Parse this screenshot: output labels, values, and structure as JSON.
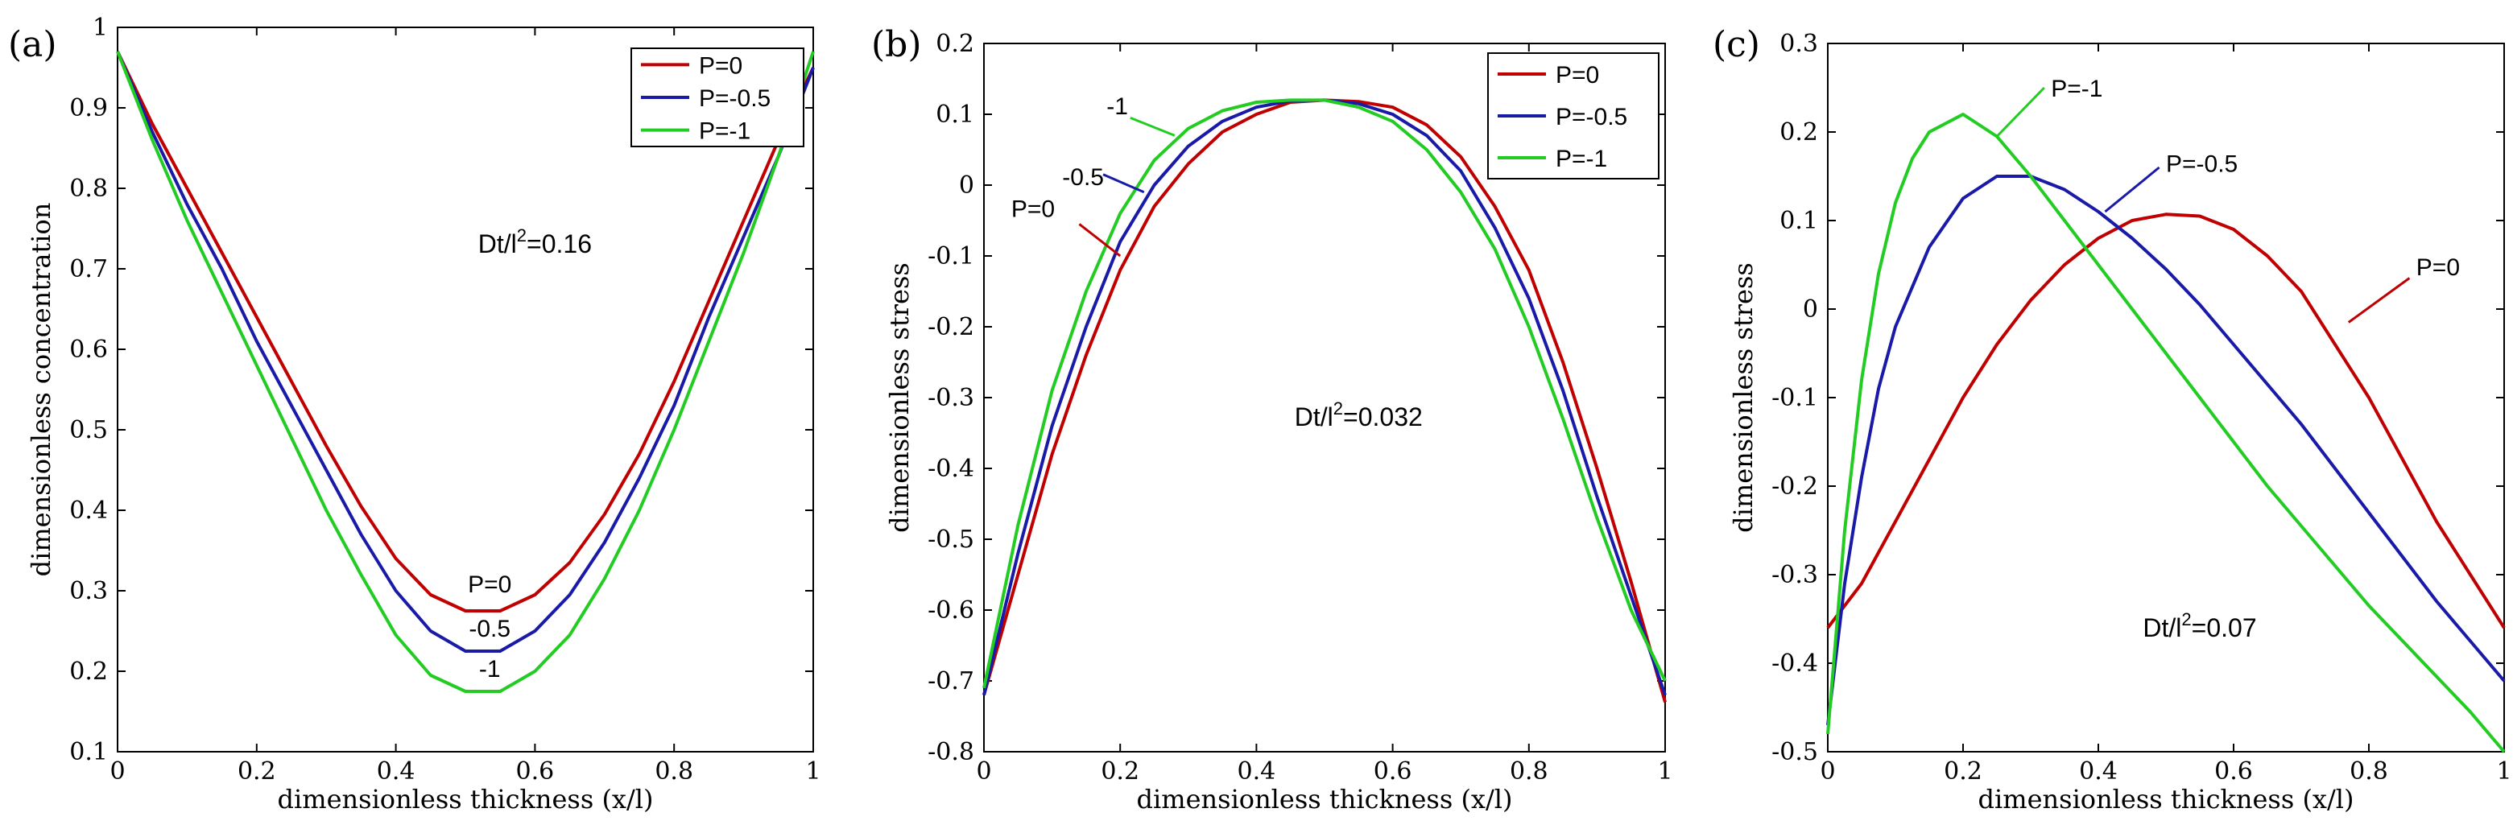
{
  "chart_data": [
    {
      "panel": "(a)",
      "type": "line",
      "xlabel": "dimensionless thickness (x/l)",
      "ylabel": "dimensionless concentration",
      "xlim": [
        0,
        1
      ],
      "ylim": [
        0.1,
        1
      ],
      "xticks": [
        0,
        0.2,
        0.4,
        0.6,
        0.8,
        1
      ],
      "xtick_labels": [
        "0",
        "0.2",
        "0.4",
        "0.6",
        "0.8",
        "1"
      ],
      "yticks": [
        0.1,
        0.2,
        0.3,
        0.4,
        0.5,
        0.6,
        0.7,
        0.8,
        0.9,
        1
      ],
      "ytick_labels": [
        "0.1",
        "0.2",
        "0.3",
        "0.4",
        "0.5",
        "0.6",
        "0.7",
        "0.8",
        "0.9",
        "1"
      ],
      "grid": false,
      "legend_position": "top-right",
      "annotation": "Dt/l",
      "annotation_sup": "2",
      "annotation_tail": "=0.16",
      "series": [
        {
          "name": "P=0",
          "color": "#c00000",
          "x": [
            0,
            0.05,
            0.1,
            0.15,
            0.2,
            0.25,
            0.3,
            0.35,
            0.4,
            0.45,
            0.5,
            0.55,
            0.6,
            0.65,
            0.7,
            0.75,
            0.8,
            0.85,
            0.9,
            0.95,
            1
          ],
          "y": [
            0.97,
            0.88,
            0.8,
            0.72,
            0.64,
            0.56,
            0.48,
            0.405,
            0.34,
            0.295,
            0.275,
            0.275,
            0.295,
            0.335,
            0.395,
            0.47,
            0.56,
            0.66,
            0.76,
            0.86,
            0.95
          ]
        },
        {
          "name": "P=-0.5",
          "color": "#1a1aa8",
          "x": [
            0,
            0.05,
            0.1,
            0.15,
            0.2,
            0.25,
            0.3,
            0.35,
            0.4,
            0.45,
            0.5,
            0.55,
            0.6,
            0.65,
            0.7,
            0.75,
            0.8,
            0.85,
            0.9,
            0.95,
            1
          ],
          "y": [
            0.97,
            0.87,
            0.78,
            0.7,
            0.61,
            0.53,
            0.45,
            0.37,
            0.3,
            0.25,
            0.225,
            0.225,
            0.25,
            0.295,
            0.36,
            0.44,
            0.53,
            0.64,
            0.74,
            0.84,
            0.95
          ]
        },
        {
          "name": "P=-1",
          "color": "#22cc22",
          "x": [
            0,
            0.05,
            0.1,
            0.15,
            0.2,
            0.25,
            0.3,
            0.35,
            0.4,
            0.45,
            0.5,
            0.55,
            0.6,
            0.65,
            0.7,
            0.75,
            0.8,
            0.85,
            0.9,
            0.95,
            1
          ],
          "y": [
            0.97,
            0.86,
            0.76,
            0.67,
            0.58,
            0.49,
            0.4,
            0.32,
            0.245,
            0.195,
            0.175,
            0.175,
            0.2,
            0.245,
            0.315,
            0.4,
            0.5,
            0.61,
            0.72,
            0.84,
            0.97
          ]
        }
      ],
      "curve_labels": [
        {
          "text": "P=0",
          "x": 0.535,
          "y": 0.298
        },
        {
          "text": "-0.5",
          "x": 0.535,
          "y": 0.243
        },
        {
          "text": "-1",
          "x": 0.535,
          "y": 0.193
        }
      ]
    },
    {
      "panel": "(b)",
      "type": "line",
      "xlabel": "dimensionless thickness (x/l)",
      "ylabel": "dimensionless stress",
      "xlim": [
        0,
        1
      ],
      "ylim": [
        -0.8,
        0.2
      ],
      "xticks": [
        0,
        0.2,
        0.4,
        0.6,
        0.8,
        1
      ],
      "xtick_labels": [
        "0",
        "0.2",
        "0.4",
        "0.6",
        "0.8",
        "1"
      ],
      "yticks": [
        0.2,
        0.1,
        0,
        -0.1,
        -0.2,
        -0.3,
        -0.4,
        -0.5,
        -0.6,
        -0.7,
        -0.8
      ],
      "ytick_labels": [
        "0.2",
        "0.1",
        "0",
        "-0.1",
        "-0.2",
        "-0.3",
        "-0.4",
        "-0.5",
        "-0.6",
        "-0.7",
        "-0.8"
      ],
      "grid": false,
      "legend_position": "top-right",
      "annotation": "Dt/l",
      "annotation_sup": "2",
      "annotation_tail": "=0.032",
      "series": [
        {
          "name": "P=0",
          "color": "#c00000",
          "x": [
            0,
            0.05,
            0.1,
            0.15,
            0.2,
            0.25,
            0.3,
            0.35,
            0.4,
            0.45,
            0.5,
            0.55,
            0.6,
            0.65,
            0.7,
            0.75,
            0.8,
            0.85,
            0.9,
            0.95,
            1
          ],
          "y": [
            -0.72,
            -0.55,
            -0.38,
            -0.24,
            -0.12,
            -0.03,
            0.03,
            0.075,
            0.1,
            0.117,
            0.12,
            0.118,
            0.11,
            0.085,
            0.04,
            -0.03,
            -0.12,
            -0.25,
            -0.4,
            -0.56,
            -0.73
          ]
        },
        {
          "name": "P=-0.5",
          "color": "#1a1aa8",
          "x": [
            0,
            0.05,
            0.1,
            0.15,
            0.2,
            0.25,
            0.3,
            0.35,
            0.4,
            0.45,
            0.5,
            0.55,
            0.6,
            0.65,
            0.7,
            0.75,
            0.8,
            0.85,
            0.9,
            0.95,
            1
          ],
          "y": [
            -0.72,
            -0.52,
            -0.34,
            -0.2,
            -0.08,
            0.0,
            0.055,
            0.09,
            0.11,
            0.119,
            0.12,
            0.115,
            0.1,
            0.07,
            0.02,
            -0.06,
            -0.16,
            -0.29,
            -0.44,
            -0.58,
            -0.72
          ]
        },
        {
          "name": "P=-1",
          "color": "#22cc22",
          "x": [
            0,
            0.05,
            0.1,
            0.15,
            0.2,
            0.25,
            0.3,
            0.35,
            0.4,
            0.45,
            0.5,
            0.55,
            0.6,
            0.65,
            0.7,
            0.75,
            0.8,
            0.85,
            0.9,
            0.95,
            1
          ],
          "y": [
            -0.71,
            -0.48,
            -0.29,
            -0.15,
            -0.04,
            0.035,
            0.08,
            0.105,
            0.117,
            0.12,
            0.12,
            0.11,
            0.09,
            0.05,
            -0.01,
            -0.09,
            -0.2,
            -0.33,
            -0.47,
            -0.6,
            -0.7
          ]
        }
      ],
      "curve_labels": [
        {
          "text": "-1",
          "x": 0.18,
          "y": 0.1,
          "lx1": 0.215,
          "ly1": 0.095,
          "lx2": 0.28,
          "ly2": 0.07
        },
        {
          "text": "-0.5",
          "x": 0.115,
          "y": 0.0,
          "lx1": 0.175,
          "ly1": 0.015,
          "lx2": 0.235,
          "ly2": -0.01
        },
        {
          "text": "P=0",
          "x": 0.04,
          "y": -0.045,
          "lx1": 0.14,
          "ly1": -0.055,
          "lx2": 0.2,
          "ly2": -0.1
        }
      ]
    },
    {
      "panel": "(c)",
      "type": "line",
      "xlabel": "dimensionless thickness (x/l)",
      "ylabel": "dimensionless stress",
      "xlim": [
        0,
        1
      ],
      "ylim": [
        -0.5,
        0.3
      ],
      "xticks": [
        0,
        0.2,
        0.4,
        0.6,
        0.8,
        1
      ],
      "xtick_labels": [
        "0",
        "0.2",
        "0.4",
        "0.6",
        "0.8",
        "1"
      ],
      "yticks": [
        0.3,
        0.2,
        0.1,
        0,
        -0.1,
        -0.2,
        -0.3,
        -0.4,
        -0.5
      ],
      "ytick_labels": [
        "0.3",
        "0.2",
        "0.1",
        "0",
        "-0.1",
        "-0.2",
        "-0.3",
        "-0.4",
        "-0.5"
      ],
      "grid": false,
      "legend_position": "none",
      "annotation": "Dt/l",
      "annotation_sup": "2",
      "annotation_tail": "=0.07",
      "series": [
        {
          "name": "P=0",
          "color": "#c00000",
          "x": [
            0,
            0.05,
            0.1,
            0.15,
            0.2,
            0.25,
            0.3,
            0.35,
            0.4,
            0.45,
            0.5,
            0.55,
            0.6,
            0.65,
            0.7,
            0.75,
            0.8,
            0.85,
            0.9,
            0.95,
            1
          ],
          "y": [
            -0.36,
            -0.31,
            -0.24,
            -0.17,
            -0.1,
            -0.04,
            0.01,
            0.05,
            0.08,
            0.1,
            0.107,
            0.105,
            0.09,
            0.06,
            0.02,
            -0.04,
            -0.1,
            -0.17,
            -0.24,
            -0.3,
            -0.36
          ]
        },
        {
          "name": "P=-0.5",
          "color": "#1a1aa8",
          "x": [
            0,
            0.025,
            0.05,
            0.075,
            0.1,
            0.15,
            0.2,
            0.25,
            0.3,
            0.35,
            0.4,
            0.45,
            0.5,
            0.55,
            0.6,
            0.65,
            0.7,
            0.75,
            0.8,
            0.85,
            0.9,
            0.95,
            1
          ],
          "y": [
            -0.47,
            -0.31,
            -0.19,
            -0.09,
            -0.02,
            0.07,
            0.125,
            0.15,
            0.15,
            0.135,
            0.11,
            0.08,
            0.045,
            0.005,
            -0.04,
            -0.085,
            -0.13,
            -0.18,
            -0.23,
            -0.28,
            -0.33,
            -0.375,
            -0.42
          ]
        },
        {
          "name": "P=-1",
          "color": "#22cc22",
          "x": [
            0,
            0.025,
            0.05,
            0.075,
            0.1,
            0.125,
            0.15,
            0.2,
            0.25,
            0.3,
            0.35,
            0.4,
            0.45,
            0.5,
            0.55,
            0.6,
            0.65,
            0.7,
            0.75,
            0.8,
            0.85,
            0.9,
            0.95,
            1
          ],
          "y": [
            -0.48,
            -0.25,
            -0.08,
            0.04,
            0.12,
            0.17,
            0.2,
            0.22,
            0.195,
            0.15,
            0.1,
            0.05,
            0.0,
            -0.05,
            -0.1,
            -0.15,
            -0.2,
            -0.245,
            -0.29,
            -0.335,
            -0.375,
            -0.415,
            -0.455,
            -0.5
          ]
        }
      ],
      "curve_labels": [
        {
          "text": "P=-1",
          "x": 0.33,
          "y": 0.24,
          "lx1": 0.25,
          "ly1": 0.195,
          "lx2": 0.32,
          "ly2": 0.25
        },
        {
          "text": "P=-0.5",
          "x": 0.5,
          "y": 0.155,
          "lx1": 0.41,
          "ly1": 0.11,
          "lx2": 0.49,
          "ly2": 0.16
        },
        {
          "text": "P=0",
          "x": 0.87,
          "y": 0.038,
          "lx1": 0.77,
          "ly1": -0.015,
          "lx2": 0.86,
          "ly2": 0.035
        }
      ]
    }
  ]
}
